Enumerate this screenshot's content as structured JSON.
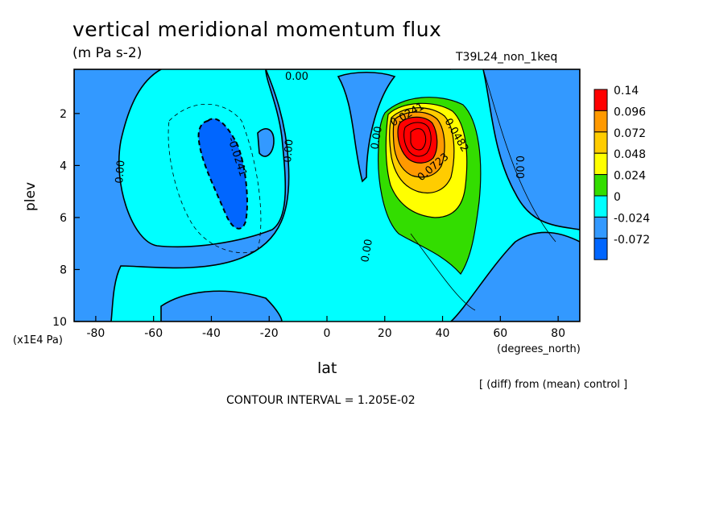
{
  "header": {
    "title": "vertical meridional momentum flux",
    "units": "(m Pa s-2)",
    "run_name": "T39L24_non_1keq"
  },
  "footer": {
    "diff_note": "[ (diff) from (mean) control ]",
    "contour_interval": "CONTOUR INTERVAL = 1.205E-02"
  },
  "chart_data": {
    "type": "heatmap",
    "title": "vertical meridional momentum flux",
    "units": "(m Pa s-2)",
    "xlabel": "lat",
    "xunit": "(degrees_north)",
    "ylabel": "plev",
    "yunit": "(x1E4 Pa)",
    "xlim": [
      -87.5,
      87.5
    ],
    "ylim": [
      10,
      0.3
    ],
    "y_inverted": true,
    "xticks": [
      "-80",
      "-60",
      "-40",
      "-20",
      "0",
      "20",
      "40",
      "60",
      "80"
    ],
    "yticks": [
      "2",
      "4",
      "6",
      "8",
      "10"
    ],
    "contour_interval": 0.01205,
    "legend": {
      "placement": "right",
      "labels": [
        "0.14",
        "0.096",
        "0.072",
        "0.048",
        "0.024",
        "0",
        "-0.024",
        "-0.072"
      ],
      "colors": [
        "#ff0000",
        "#ff9900",
        "#ffcc00",
        "#ffff00",
        "#33dd00",
        "#00ffff",
        "#3399ff",
        "#0066ff"
      ]
    },
    "contour_labels": [
      "0.00",
      "0.00",
      "0.00",
      "0.00",
      "0.00",
      "0.00",
      "-0.0241",
      "0.0241",
      "0.0482",
      "0.0723"
    ],
    "features": [
      {
        "name": "positive maximum",
        "lat": 30,
        "plev": 2.8,
        "value": 0.14
      },
      {
        "name": "negative minimum",
        "lat": -37,
        "plev": 3.8,
        "value": -0.03
      }
    ]
  }
}
